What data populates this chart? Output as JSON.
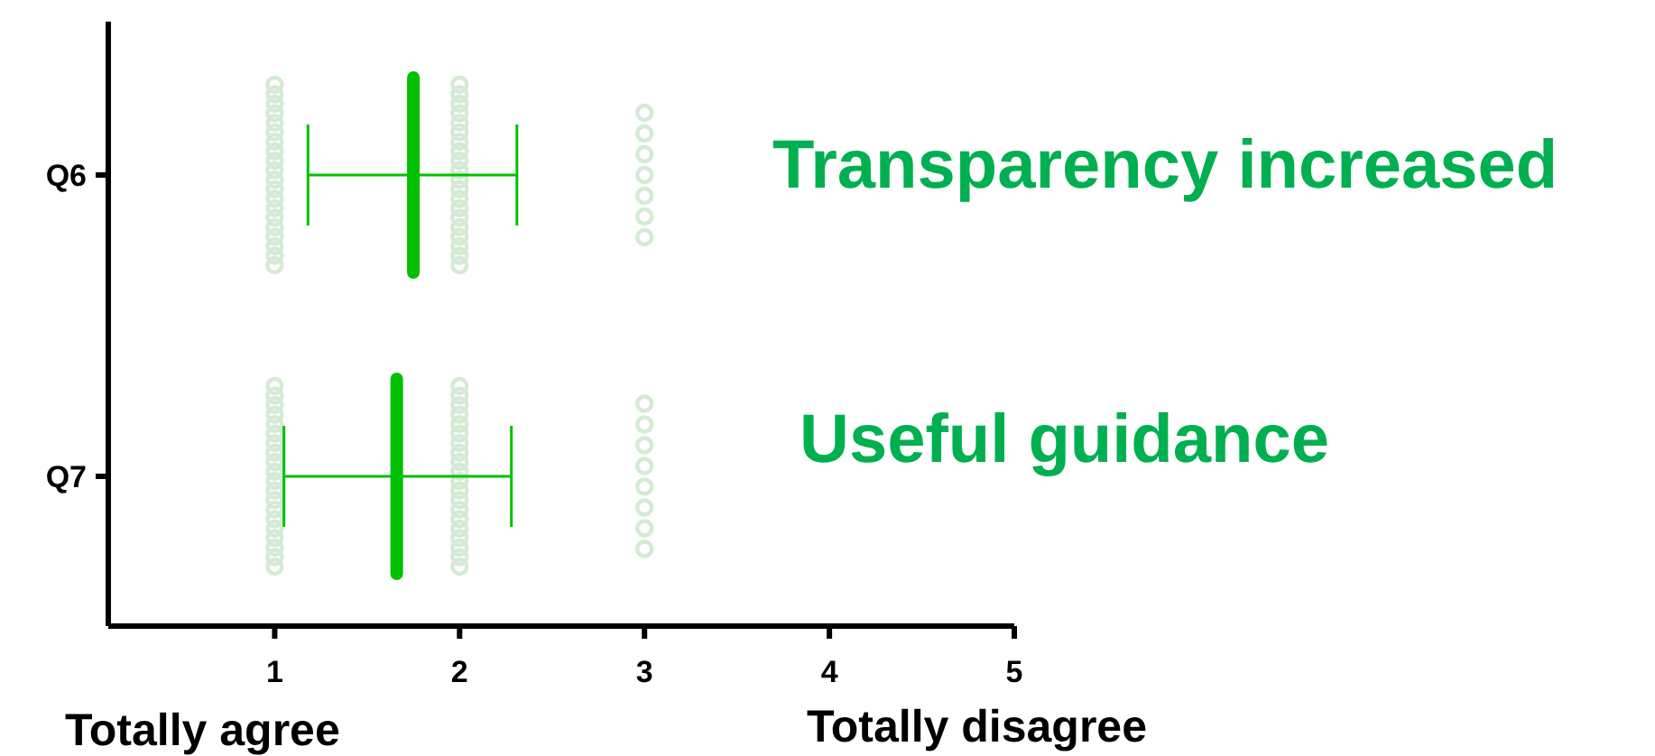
{
  "chart_data": {
    "type": "box",
    "orientation": "horizontal",
    "categories": [
      "Q6",
      "Q7"
    ],
    "xlim": [
      0.1,
      5
    ],
    "xticks": [
      1,
      2,
      3,
      4,
      5
    ],
    "series": [
      {
        "type": "scatter",
        "color": "#d4ead4",
        "marker": "circle",
        "x": [
          "Q6",
          "Q6",
          "Q6",
          "Q6",
          "Q6",
          "Q6",
          "Q6",
          "Q6",
          "Q6",
          "Q6",
          "Q6",
          "Q6",
          "Q6",
          "Q6",
          "Q6",
          "Q6",
          "Q6",
          "Q6",
          "Q6",
          "Q6",
          "Q6",
          "Q6",
          "Q6",
          "Q6",
          "Q6",
          "Q6",
          "Q6",
          "Q6",
          "Q6",
          "Q6",
          "Q6",
          "Q6",
          "Q6",
          "Q6",
          "Q6",
          "Q6",
          "Q6",
          "Q6",
          "Q6",
          "Q6",
          "Q6",
          "Q6",
          "Q6",
          "Q6",
          "Q6",
          "Q6",
          "Q6",
          "Q7",
          "Q7",
          "Q7",
          "Q7",
          "Q7",
          "Q7",
          "Q7",
          "Q7",
          "Q7",
          "Q7",
          "Q7",
          "Q7",
          "Q7",
          "Q7",
          "Q7",
          "Q7",
          "Q7",
          "Q7",
          "Q7",
          "Q7",
          "Q7",
          "Q7",
          "Q7",
          "Q7",
          "Q7",
          "Q7",
          "Q7",
          "Q7",
          "Q7",
          "Q7",
          "Q7",
          "Q7",
          "Q7",
          "Q7",
          "Q7",
          "Q7",
          "Q7",
          "Q7",
          "Q7",
          "Q7",
          "Q7",
          "Q7",
          "Q7",
          "Q7",
          "Q7",
          "Q7",
          "Q7",
          "Q7"
        ],
        "values": [
          1,
          1,
          1,
          1,
          1,
          1,
          1,
          1,
          1,
          1,
          1,
          1,
          1,
          1,
          1,
          1,
          1,
          1,
          1,
          1,
          2,
          2,
          2,
          2,
          2,
          2,
          2,
          2,
          2,
          2,
          2,
          2,
          2,
          2,
          2,
          2,
          2,
          2,
          2,
          2,
          3,
          3,
          3,
          3,
          3,
          3,
          3,
          1,
          1,
          1,
          1,
          1,
          1,
          1,
          1,
          1,
          1,
          1,
          1,
          1,
          1,
          1,
          1,
          1,
          1,
          1,
          1,
          2,
          2,
          2,
          2,
          2,
          2,
          2,
          2,
          2,
          2,
          2,
          2,
          2,
          2,
          2,
          2,
          2,
          2,
          2,
          2,
          3,
          3,
          3,
          3,
          3,
          3,
          3,
          3
        ]
      },
      {
        "color": "#00c000",
        "boxes": [
          {
            "low": 1.18,
            "q1": 1.75,
            "median": 1.75,
            "q3": 1.75,
            "high": 2.31
          },
          {
            "low": 1.05,
            "q1": 1.66,
            "median": 1.66,
            "q3": 1.66,
            "high": 2.28
          }
        ]
      }
    ],
    "annotations": [
      "Transparency increased",
      "Useful guidance",
      "Totally agree",
      "Totally disagree"
    ]
  }
}
